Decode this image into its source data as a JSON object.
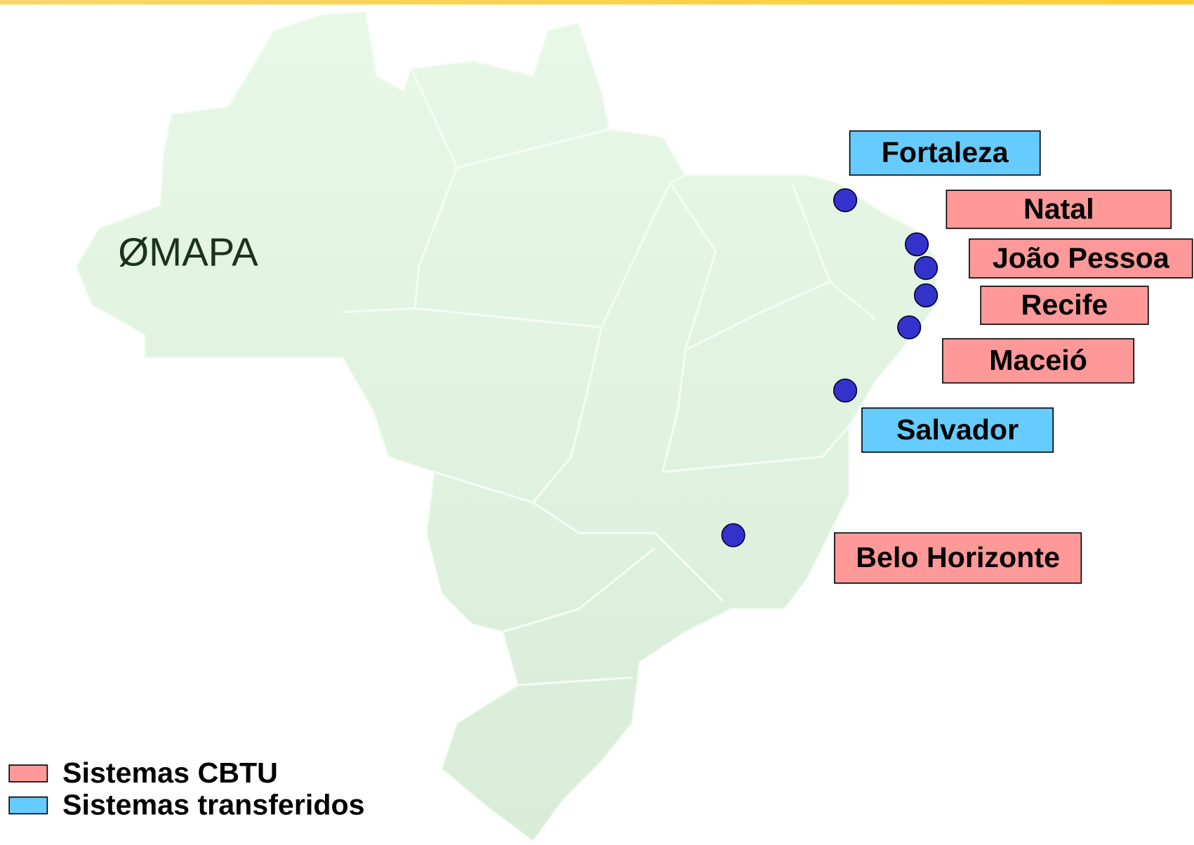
{
  "title": "ØMAPA",
  "cities": [
    {
      "name": "Fortaleza",
      "color": "#66ccff"
    },
    {
      "name": "Natal",
      "color": "#ff9999"
    },
    {
      "name": "João Pessoa",
      "color": "#ff9999"
    },
    {
      "name": "Recife",
      "color": "#ff9999"
    },
    {
      "name": "Maceió",
      "color": "#ff9999"
    },
    {
      "name": "Salvador",
      "color": "#66ccff"
    },
    {
      "name": "Belo Horizonte",
      "color": "#ff9999"
    }
  ],
  "legend": [
    {
      "label": "Sistemas CBTU",
      "color": "#ff9999"
    },
    {
      "label": "Sistemas transferidos",
      "color": "#66ccff"
    }
  ]
}
